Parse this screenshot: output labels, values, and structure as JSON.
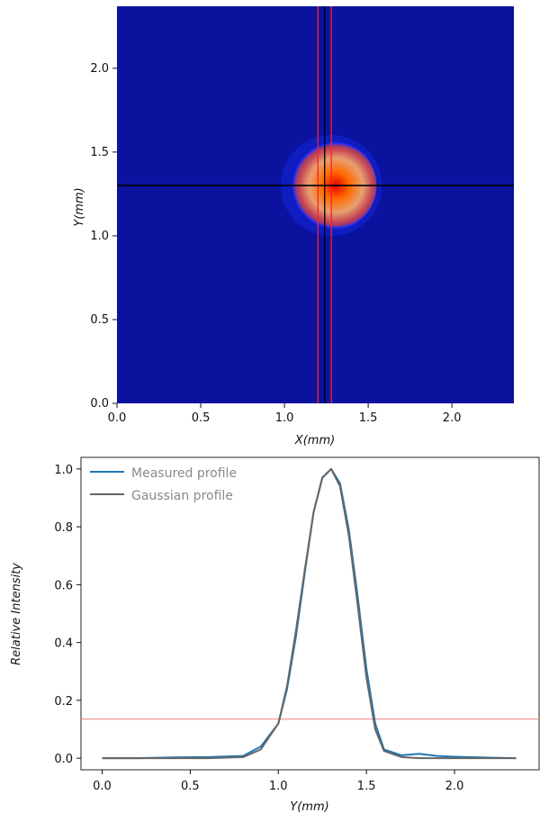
{
  "chart_data": [
    {
      "type": "heatmap",
      "xlabel": "X(mm)",
      "ylabel": "Y(mm)",
      "xlim": [
        0,
        2.37
      ],
      "ylim": [
        0,
        2.37
      ],
      "xticks": [
        "0.0",
        "0.5",
        "1.0",
        "1.5",
        "2.0"
      ],
      "yticks": [
        "0.0",
        "0.5",
        "1.0",
        "1.5",
        "2.0"
      ],
      "colormap": "jet",
      "background_color": "#0a129e",
      "beam_center": [
        1.28,
        1.3
      ],
      "beam_radius": 0.27,
      "crosshair": {
        "x": 1.24,
        "y": 1.3,
        "color": "#000000"
      },
      "red_cursor_lines_x": [
        1.2,
        1.28
      ],
      "red_line_color": "#ff2020",
      "grid": false
    },
    {
      "type": "line",
      "xlabel": "Y(mm)",
      "ylabel": "Relative Intensity",
      "xlim": [
        -0.12,
        2.48
      ],
      "ylim": [
        -0.04,
        1.04
      ],
      "xticks": [
        "0.0",
        "0.5",
        "1.0",
        "1.5",
        "2.0"
      ],
      "yticks": [
        "0.0",
        "0.2",
        "0.4",
        "0.6",
        "0.8",
        "1.0"
      ],
      "legend_position": "top-left",
      "threshold": {
        "y": 0.135,
        "color": "#f08080"
      },
      "grid": false,
      "series": [
        {
          "name": "Measured profile",
          "color": "#1f77b4",
          "x": [
            0.0,
            0.2,
            0.4,
            0.6,
            0.8,
            0.9,
            1.0,
            1.05,
            1.1,
            1.15,
            1.2,
            1.25,
            1.3,
            1.35,
            1.4,
            1.45,
            1.5,
            1.55,
            1.6,
            1.7,
            1.8,
            1.9,
            2.0,
            2.2,
            2.35
          ],
          "y": [
            0.0,
            0.0,
            0.003,
            0.004,
            0.008,
            0.04,
            0.12,
            0.24,
            0.42,
            0.64,
            0.85,
            0.97,
            1.0,
            0.95,
            0.79,
            0.56,
            0.31,
            0.12,
            0.03,
            0.01,
            0.015,
            0.008,
            0.005,
            0.002,
            0.0
          ]
        },
        {
          "name": "Gaussian profile",
          "color": "#666666",
          "x": [
            0.0,
            0.2,
            0.4,
            0.6,
            0.8,
            0.9,
            1.0,
            1.05,
            1.1,
            1.15,
            1.2,
            1.25,
            1.3,
            1.35,
            1.4,
            1.45,
            1.5,
            1.55,
            1.6,
            1.7,
            1.8,
            1.9,
            2.0,
            2.2,
            2.35
          ],
          "y": [
            0.0,
            0.0,
            0.0,
            0.0,
            0.004,
            0.03,
            0.12,
            0.25,
            0.44,
            0.65,
            0.85,
            0.97,
            1.0,
            0.94,
            0.77,
            0.53,
            0.28,
            0.1,
            0.025,
            0.004,
            0.0,
            0.0,
            0.0,
            0.0,
            0.0
          ]
        }
      ]
    }
  ]
}
